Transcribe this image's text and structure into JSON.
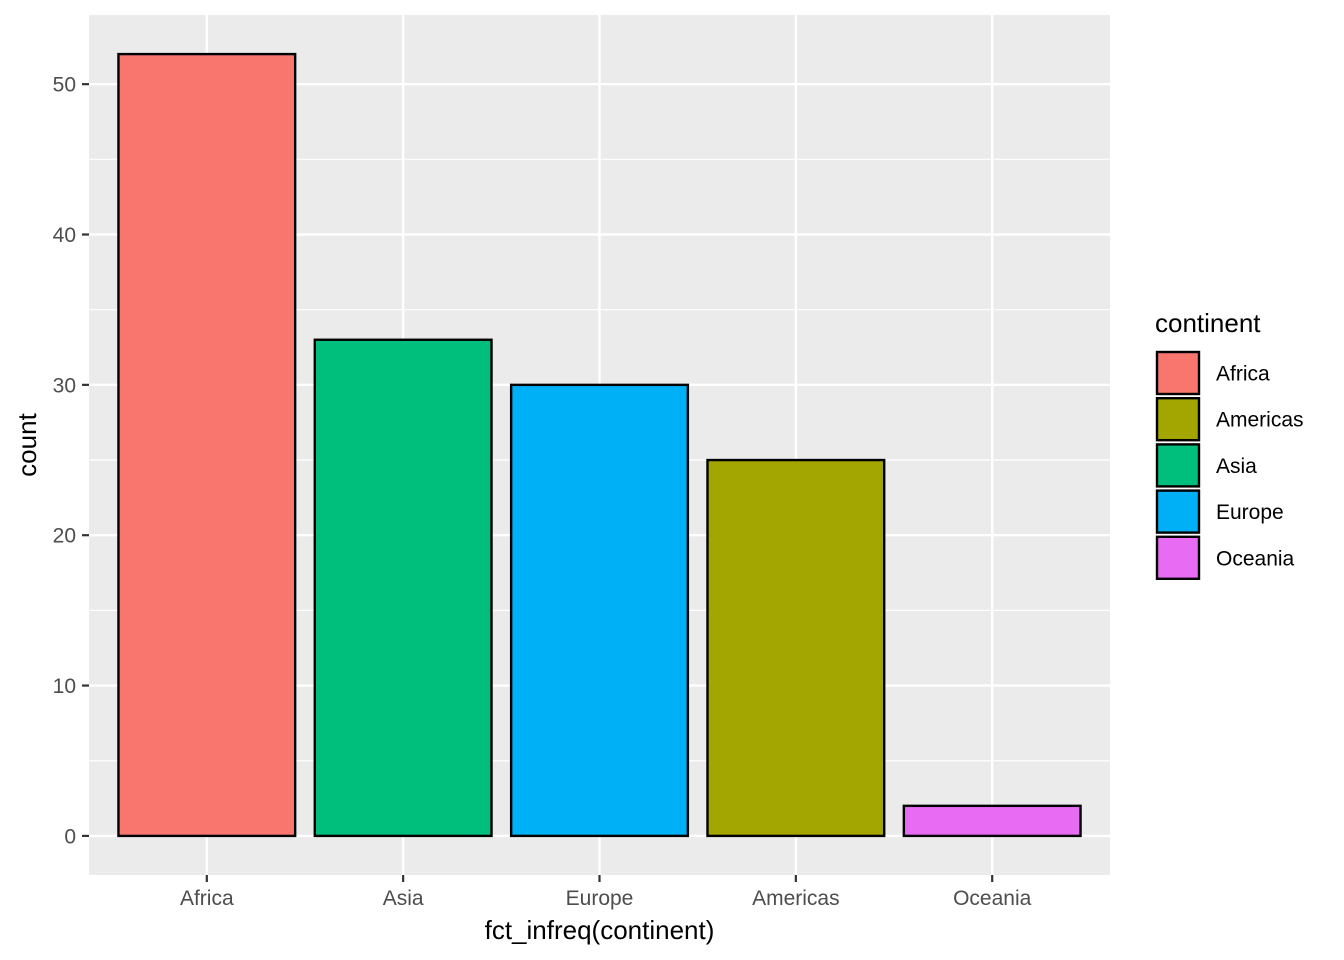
{
  "chart_data": {
    "type": "bar",
    "title": "",
    "xlabel": "fct_infreq(continent)",
    "ylabel": "count",
    "categories": [
      "Africa",
      "Asia",
      "Europe",
      "Americas",
      "Oceania"
    ],
    "values": [
      52,
      33,
      30,
      25,
      2
    ],
    "bar_colors": [
      "#F8766D",
      "#00BF7D",
      "#00B0F6",
      "#A3A500",
      "#E76BF3"
    ],
    "ylim": [
      -2.6,
      54.6
    ],
    "yticks": [
      0,
      10,
      20,
      30,
      40,
      50
    ],
    "grid": true,
    "legend": {
      "title": "continent",
      "position": "right",
      "entries": [
        {
          "label": "Africa",
          "color": "#F8766D"
        },
        {
          "label": "Americas",
          "color": "#A3A500"
        },
        {
          "label": "Asia",
          "color": "#00BF7D"
        },
        {
          "label": "Europe",
          "color": "#00B0F6"
        },
        {
          "label": "Oceania",
          "color": "#E76BF3"
        }
      ]
    },
    "panel_background": "#EBEBEB",
    "grid_color": "#FFFFFF",
    "bar_outline_color": "#000000"
  }
}
